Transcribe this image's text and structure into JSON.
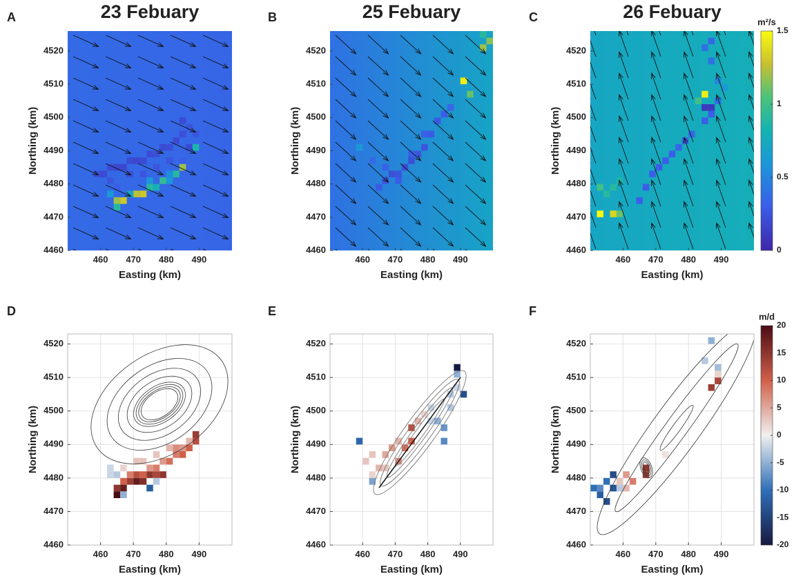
{
  "chart_data": [
    {
      "type": "heatmap",
      "panel_label": "A",
      "title": "23 Febuary",
      "x_label": "Easting (km)",
      "y_label": "Northing (km)",
      "xlim": [
        450,
        500
      ],
      "ylim": [
        4460,
        4526
      ],
      "xticks": [
        460,
        470,
        480,
        490
      ],
      "yticks": [
        4460,
        4470,
        4480,
        4490,
        4500,
        4510,
        4520
      ],
      "background": {
        "west": 0.36,
        "east": 0.34
      },
      "wind": {
        "u": 1,
        "v": -0.45
      },
      "cells": [
        [
          458,
          4482,
          0.22
        ],
        [
          460,
          4482,
          0.2
        ],
        [
          462,
          4484,
          0.2
        ],
        [
          464,
          4484,
          0.18
        ],
        [
          466,
          4484,
          0.18
        ],
        [
          468,
          4486,
          0.2
        ],
        [
          470,
          4486,
          0.18
        ],
        [
          472,
          4486,
          0.2
        ],
        [
          474,
          4488,
          0.2
        ],
        [
          476,
          4488,
          0.22
        ],
        [
          478,
          4490,
          0.2
        ],
        [
          480,
          4490,
          0.22
        ],
        [
          482,
          4492,
          0.2
        ],
        [
          484,
          4494,
          0.22
        ],
        [
          486,
          4496,
          0.25
        ],
        [
          488,
          4494,
          0.25
        ],
        [
          484,
          4498,
          0.2
        ],
        [
          486,
          4490,
          0.2
        ],
        [
          462,
          4480,
          0.25
        ],
        [
          464,
          4478,
          0.3
        ],
        [
          468,
          4482,
          0.22
        ],
        [
          472,
          4482,
          0.25
        ],
        [
          476,
          4484,
          0.25
        ],
        [
          480,
          4486,
          0.25
        ],
        [
          484,
          4486,
          0.3
        ],
        [
          462,
          4476,
          0.6
        ],
        [
          464,
          4474,
          1.2
        ],
        [
          466,
          4474,
          1.3
        ],
        [
          468,
          4476,
          0.7
        ],
        [
          470,
          4476,
          1.25
        ],
        [
          472,
          4476,
          1.3
        ],
        [
          474,
          4478,
          0.9
        ],
        [
          476,
          4478,
          0.8
        ],
        [
          478,
          4480,
          0.95
        ],
        [
          480,
          4480,
          0.6
        ],
        [
          482,
          4482,
          0.9
        ],
        [
          484,
          4484,
          1.2
        ],
        [
          488,
          4490,
          0.85
        ],
        [
          464,
          4472,
          0.9
        ],
        [
          474,
          4480,
          0.6
        ],
        [
          480,
          4482,
          0.55
        ]
      ]
    },
    {
      "type": "heatmap",
      "panel_label": "B",
      "title": "25 Febuary",
      "x_label": "Easting (km)",
      "y_label": "Northing (km)",
      "xlim": [
        450,
        500
      ],
      "ylim": [
        4460,
        4526
      ],
      "xticks": [
        460,
        470,
        480,
        490
      ],
      "yticks": [
        4460,
        4470,
        4480,
        4490,
        4500,
        4510,
        4520
      ],
      "background": {
        "west": 0.4,
        "east": 0.7
      },
      "wind": {
        "u": 0.6,
        "v": -0.55
      },
      "cells": [
        [
          464,
          4478,
          0.28
        ],
        [
          466,
          4480,
          0.25
        ],
        [
          468,
          4482,
          0.22
        ],
        [
          470,
          4482,
          0.25
        ],
        [
          472,
          4484,
          0.22
        ],
        [
          474,
          4486,
          0.22
        ],
        [
          476,
          4488,
          0.25
        ],
        [
          478,
          4490,
          0.25
        ],
        [
          480,
          4494,
          0.28
        ],
        [
          482,
          4498,
          0.28
        ],
        [
          484,
          4500,
          0.3
        ],
        [
          486,
          4502,
          0.35
        ],
        [
          470,
          4480,
          0.3
        ],
        [
          466,
          4484,
          0.32
        ],
        [
          462,
          4486,
          0.35
        ],
        [
          474,
          4488,
          0.3
        ],
        [
          478,
          4494,
          0.3
        ],
        [
          458,
          4490,
          0.6
        ],
        [
          490,
          4510,
          1.45
        ],
        [
          492,
          4506,
          1.1
        ],
        [
          496,
          4520,
          1.2
        ],
        [
          498,
          4522,
          1.15
        ],
        [
          496,
          4524,
          0.9
        ]
      ]
    },
    {
      "type": "heatmap",
      "panel_label": "C",
      "title": "26 Febuary",
      "x_label": "Easting (km)",
      "y_label": "Northing (km)",
      "xlim": [
        450,
        500
      ],
      "ylim": [
        4460,
        4526
      ],
      "xticks": [
        460,
        470,
        480,
        490
      ],
      "yticks": [
        4460,
        4470,
        4480,
        4490,
        4500,
        4510,
        4520
      ],
      "background": {
        "west": 0.72,
        "east": 0.78
      },
      "wind": {
        "u": -0.35,
        "v": 1
      },
      "cells": [
        [
          464,
          4474,
          0.3
        ],
        [
          466,
          4478,
          0.3
        ],
        [
          468,
          4482,
          0.3
        ],
        [
          470,
          4484,
          0.3
        ],
        [
          472,
          4486,
          0.3
        ],
        [
          474,
          4488,
          0.3
        ],
        [
          476,
          4490,
          0.35
        ],
        [
          478,
          4492,
          0.3
        ],
        [
          480,
          4494,
          0.35
        ],
        [
          484,
          4498,
          0.3
        ],
        [
          486,
          4500,
          0.3
        ],
        [
          484,
          4502,
          0.1
        ],
        [
          486,
          4502,
          0.1
        ],
        [
          488,
          4504,
          0.4
        ],
        [
          484,
          4506,
          1.45
        ],
        [
          482,
          4504,
          1
        ],
        [
          488,
          4510,
          0.5
        ],
        [
          486,
          4516,
          0.4
        ],
        [
          484,
          4520,
          0.4
        ],
        [
          486,
          4522,
          0.35
        ],
        [
          490,
          4508,
          0.6
        ],
        [
          452,
          4470,
          1.5
        ],
        [
          456,
          4470,
          1.35
        ],
        [
          458,
          4470,
          1.1
        ],
        [
          452,
          4478,
          1
        ],
        [
          454,
          4476,
          0.9
        ],
        [
          456,
          4478,
          0.9
        ],
        [
          458,
          4480,
          0.85
        ]
      ],
      "colorbar": {
        "label": "m²/s",
        "colormap": "parula",
        "lim": [
          0,
          1.5
        ],
        "ticks": [
          0,
          0.5,
          1,
          1.5
        ]
      }
    },
    {
      "type": "heatmap",
      "panel_label": "D",
      "x_label": "Easting (km)",
      "y_label": "Northing (km)",
      "xlim": [
        450,
        500
      ],
      "ylim": [
        4460,
        4523
      ],
      "xticks": [
        460,
        470,
        480,
        490
      ],
      "yticks": [
        4460,
        4470,
        4480,
        4490,
        4500,
        4510,
        4520
      ],
      "grid": true,
      "cells": [
        [
          462,
          4480,
          -2
        ],
        [
          464,
          4480,
          -3
        ],
        [
          462,
          4482,
          -2
        ],
        [
          464,
          4476,
          15
        ],
        [
          466,
          4476,
          18
        ],
        [
          468,
          4478,
          14
        ],
        [
          470,
          4478,
          18
        ],
        [
          472,
          4478,
          16
        ],
        [
          474,
          4480,
          15
        ],
        [
          476,
          4480,
          13
        ],
        [
          478,
          4480,
          15
        ],
        [
          466,
          4478,
          10
        ],
        [
          468,
          4480,
          8
        ],
        [
          470,
          4480,
          12
        ],
        [
          472,
          4480,
          10
        ],
        [
          474,
          4482,
          6
        ],
        [
          476,
          4482,
          8
        ],
        [
          478,
          4484,
          6
        ],
        [
          480,
          4484,
          9
        ],
        [
          482,
          4486,
          8
        ],
        [
          484,
          4486,
          10
        ],
        [
          486,
          4488,
          10
        ],
        [
          488,
          4490,
          12
        ],
        [
          488,
          4492,
          14
        ],
        [
          482,
          4488,
          7
        ],
        [
          484,
          4488,
          6
        ],
        [
          464,
          4474,
          20
        ],
        [
          466,
          4474,
          -5
        ],
        [
          474,
          4476,
          -12
        ],
        [
          476,
          4478,
          -3
        ],
        [
          472,
          4484,
          3
        ],
        [
          476,
          4486,
          3
        ],
        [
          480,
          4488,
          4
        ],
        [
          486,
          4490,
          4
        ],
        [
          466,
          4482,
          2
        ],
        [
          470,
          4484,
          3
        ]
      ]
    },
    {
      "type": "heatmap",
      "panel_label": "E",
      "x_label": "Easting (km)",
      "y_label": "Northing (km)",
      "xlim": [
        450,
        500
      ],
      "ylim": [
        4460,
        4523
      ],
      "xticks": [
        460,
        470,
        480,
        490
      ],
      "yticks": [
        4460,
        4470,
        4480,
        4490,
        4500,
        4510,
        4520
      ],
      "grid": true,
      "cells": [
        [
          458,
          4490,
          -11
        ],
        [
          460,
          4484,
          3
        ],
        [
          462,
          4486,
          3
        ],
        [
          462,
          4480,
          2
        ],
        [
          464,
          4482,
          4
        ],
        [
          466,
          4486,
          5
        ],
        [
          468,
          4488,
          6
        ],
        [
          470,
          4484,
          7
        ],
        [
          472,
          4488,
          9
        ],
        [
          474,
          4490,
          10
        ],
        [
          474,
          4494,
          12
        ],
        [
          466,
          4482,
          3
        ],
        [
          470,
          4490,
          4
        ],
        [
          476,
          4496,
          4
        ],
        [
          478,
          4498,
          2
        ],
        [
          480,
          4500,
          -2
        ],
        [
          482,
          4496,
          -5
        ],
        [
          484,
          4494,
          -7
        ],
        [
          486,
          4500,
          -3
        ],
        [
          486,
          4504,
          -3
        ],
        [
          488,
          4506,
          -2
        ],
        [
          488,
          4510,
          -5
        ],
        [
          488,
          4512,
          -20
        ],
        [
          490,
          4504,
          -14
        ],
        [
          484,
          4490,
          -8
        ],
        [
          480,
          4496,
          -2
        ],
        [
          462,
          4478,
          -6
        ]
      ]
    },
    {
      "type": "heatmap",
      "panel_label": "F",
      "x_label": "Easting (km)",
      "y_label": "Northing (km)",
      "xlim": [
        450,
        500
      ],
      "ylim": [
        4460,
        4523
      ],
      "xticks": [
        460,
        470,
        480,
        490
      ],
      "yticks": [
        4460,
        4470,
        4480,
        4490,
        4500,
        4510,
        4520
      ],
      "grid": true,
      "cells": [
        [
          450,
          4476,
          -10
        ],
        [
          452,
          4474,
          -12
        ],
        [
          454,
          4472,
          -14
        ],
        [
          454,
          4478,
          -10
        ],
        [
          456,
          4476,
          -13
        ],
        [
          456,
          4480,
          -14
        ],
        [
          458,
          4476,
          -3
        ],
        [
          460,
          4476,
          4
        ],
        [
          462,
          4478,
          8
        ],
        [
          460,
          4480,
          6
        ],
        [
          458,
          4478,
          3
        ],
        [
          452,
          4476,
          -8
        ],
        [
          466,
          4480,
          14
        ],
        [
          466,
          4482,
          15
        ],
        [
          472,
          4486,
          1
        ],
        [
          486,
          4506,
          14
        ],
        [
          488,
          4508,
          13
        ],
        [
          488,
          4512,
          -4
        ],
        [
          484,
          4514,
          -3
        ],
        [
          486,
          4520,
          -5
        ],
        [
          488,
          4510,
          2
        ]
      ],
      "colorbar": {
        "label": "m/d",
        "colormap": "diverging",
        "lim": [
          -20,
          20
        ],
        "ticks": [
          -20,
          -15,
          -10,
          -5,
          0,
          5,
          10,
          15,
          20
        ]
      }
    }
  ]
}
